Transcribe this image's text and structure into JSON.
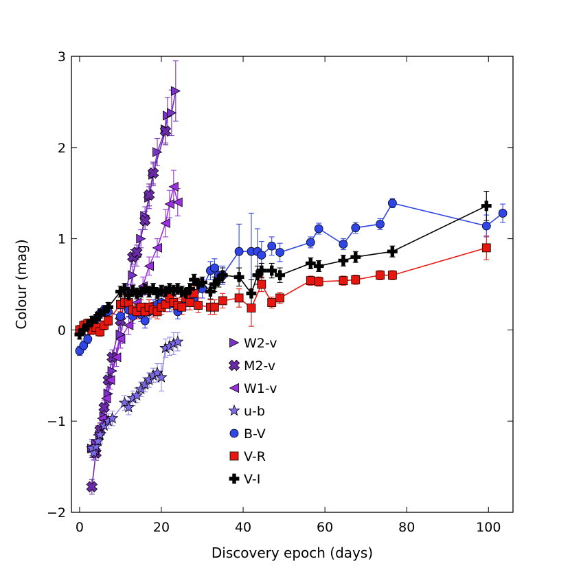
{
  "chart_data": {
    "type": "scatter",
    "title": "",
    "xlabel": "Discovery epoch (days)",
    "ylabel": "Colour (mag)",
    "xlim": [
      -2,
      106
    ],
    "ylim": [
      -2,
      3
    ],
    "xticks": [
      0,
      20,
      40,
      60,
      80,
      100
    ],
    "yticks": [
      -2,
      -1,
      0,
      1,
      2,
      3
    ],
    "xtick_labels": [
      "0",
      "20",
      "40",
      "60",
      "80",
      "100"
    ],
    "ytick_labels": [
      "−2",
      "−1",
      "0",
      "1",
      "2",
      "3"
    ],
    "legend_position": "center",
    "series": [
      {
        "name": "W2-v",
        "marker": "triangle-right",
        "color": "#7a32c8",
        "line": "#7a32c8",
        "x": [
          3.0,
          4.0,
          5.0,
          6.0,
          7.0,
          8.0,
          10.0,
          12.0,
          13.0,
          14.0,
          15.0,
          16.0,
          17.0,
          18.0,
          19.0,
          21.0,
          21.5,
          22.5,
          23.5
        ],
        "y": [
          -1.3,
          -1.25,
          -1.15,
          -0.95,
          -0.7,
          -0.45,
          -0.05,
          0.4,
          0.6,
          0.8,
          1.0,
          1.25,
          1.45,
          1.7,
          1.95,
          2.2,
          2.35,
          2.38,
          2.62
        ],
        "err": [
          0.1,
          0.1,
          0.1,
          0.1,
          0.1,
          0.1,
          0.1,
          0.1,
          0.1,
          0.1,
          0.1,
          0.1,
          0.12,
          0.12,
          0.15,
          0.15,
          0.2,
          0.25,
          0.33
        ]
      },
      {
        "name": "M2-v",
        "marker": "x-cross",
        "color": "#6a2aa8",
        "line": "#6a2aa8",
        "x": [
          3.0,
          4.0,
          5.0,
          6.0,
          7.0,
          8.0,
          10.0,
          13.0,
          14.0,
          16.0,
          17.0,
          18.0,
          21.0
        ],
        "y": [
          -1.72,
          -1.35,
          -1.1,
          -0.85,
          -0.55,
          -0.3,
          0.1,
          0.8,
          0.85,
          1.2,
          1.48,
          1.72,
          2.18
        ],
        "err": [
          0.08,
          0.08,
          0.08,
          0.08,
          0.08,
          0.08,
          0.08,
          0.08,
          0.08,
          0.1,
          0.12,
          0.12,
          0.15
        ]
      },
      {
        "name": "W1-v",
        "marker": "triangle-left",
        "color": "#9b30e0",
        "line": "#9b30e0",
        "x": [
          3.5,
          4.5,
          5.5,
          6.5,
          7.5,
          9.0,
          10.0,
          12.0,
          14.0,
          15.5,
          17.0,
          19.0,
          21.0,
          22.0,
          23.0,
          24.0
        ],
        "y": [
          -1.32,
          -1.15,
          -0.97,
          -0.75,
          -0.55,
          -0.3,
          -0.1,
          0.05,
          0.3,
          0.48,
          0.7,
          0.9,
          1.17,
          1.38,
          1.57,
          1.4
        ],
        "err": [
          0.1,
          0.1,
          0.1,
          0.1,
          0.1,
          0.1,
          0.1,
          0.1,
          0.1,
          0.1,
          0.1,
          0.1,
          0.15,
          0.15,
          0.18,
          0.15
        ]
      },
      {
        "name": "u-b",
        "marker": "star",
        "color": "#7d6ae6",
        "line": "#9a8ae8",
        "x": [
          3.0,
          3.5,
          4.0,
          4.5,
          5.0,
          6.0,
          7.0,
          8.0,
          11.0,
          12.0,
          13.0,
          14.0,
          15.0,
          16.0,
          17.0,
          18.0,
          19.0,
          20.0,
          21.0,
          22.0,
          23.0,
          24.0
        ],
        "y": [
          -1.3,
          -1.35,
          -1.28,
          -1.22,
          -1.15,
          -1.05,
          -1.0,
          -0.97,
          -0.8,
          -0.85,
          -0.75,
          -0.72,
          -0.65,
          -0.6,
          -0.55,
          -0.5,
          -0.47,
          -0.52,
          -0.2,
          -0.18,
          -0.15,
          -0.13
        ],
        "err": [
          0.08,
          0.08,
          0.08,
          0.08,
          0.08,
          0.08,
          0.08,
          0.08,
          0.08,
          0.08,
          0.08,
          0.08,
          0.08,
          0.08,
          0.08,
          0.08,
          0.1,
          0.15,
          0.1,
          0.1,
          0.12,
          0.1
        ]
      },
      {
        "name": "B-V",
        "marker": "circle",
        "color": "#3045e6",
        "line": "#3045e6",
        "x": [
          0.0,
          1.0,
          2.0,
          3.0,
          4.0,
          5.0,
          6.0,
          7.0,
          10.0,
          12.0,
          13.0,
          14.0,
          15.0,
          16.0,
          17.0,
          18.0,
          19.0,
          20.0,
          22.0,
          24.0,
          26.0,
          28.0,
          30.0,
          32.0,
          33.0,
          34.0,
          35.0,
          39.0,
          42.0,
          43.5,
          44.5,
          47.0,
          49.0,
          56.5,
          58.5,
          64.5,
          67.5,
          73.5,
          76.5,
          99.5,
          103.5
        ],
        "y": [
          -0.23,
          -0.17,
          -0.1,
          0.02,
          0.12,
          0.18,
          0.22,
          0.2,
          0.15,
          0.22,
          0.15,
          0.2,
          0.17,
          0.1,
          0.2,
          0.25,
          0.28,
          0.3,
          0.28,
          0.2,
          0.3,
          0.35,
          0.45,
          0.65,
          0.68,
          0.6,
          0.6,
          0.86,
          0.86,
          0.86,
          0.82,
          0.92,
          0.85,
          0.96,
          1.11,
          0.94,
          1.12,
          1.16,
          1.39,
          1.14,
          1.28
        ],
        "err": [
          0.05,
          0.05,
          0.05,
          0.05,
          0.05,
          0.05,
          0.05,
          0.05,
          0.08,
          0.08,
          0.08,
          0.08,
          0.08,
          0.08,
          0.08,
          0.08,
          0.08,
          0.08,
          0.08,
          0.08,
          0.08,
          0.08,
          0.1,
          0.1,
          0.1,
          0.1,
          0.1,
          0.3,
          0.42,
          0.25,
          0.15,
          0.1,
          0.1,
          0.06,
          0.06,
          0.06,
          0.06,
          0.06,
          0.05,
          0.12,
          0.1
        ]
      },
      {
        "name": "V-R",
        "marker": "square",
        "color": "#e8160e",
        "line": "#e8160e",
        "x": [
          0.0,
          1.0,
          2.0,
          3.0,
          4.0,
          5.0,
          6.0,
          7.0,
          10.0,
          11.0,
          12.0,
          13.0,
          14.0,
          15.0,
          16.0,
          17.0,
          18.0,
          19.0,
          20.0,
          21.0,
          22.0,
          23.0,
          24.0,
          25.0,
          26.0,
          27.0,
          28.0,
          29.0,
          32.0,
          33.0,
          35.0,
          39.0,
          42.0,
          44.5,
          47.0,
          49.0,
          56.5,
          58.5,
          64.5,
          67.5,
          73.5,
          76.5,
          99.5
        ],
        "y": [
          0.0,
          0.05,
          0.07,
          0.0,
          0.03,
          -0.02,
          0.05,
          0.1,
          0.28,
          0.3,
          0.3,
          0.22,
          0.2,
          0.25,
          0.2,
          0.25,
          0.22,
          0.2,
          0.25,
          0.28,
          0.35,
          0.3,
          0.27,
          0.25,
          0.35,
          0.3,
          0.4,
          0.27,
          0.25,
          0.25,
          0.32,
          0.35,
          0.24,
          0.5,
          0.3,
          0.35,
          0.54,
          0.53,
          0.54,
          0.55,
          0.6,
          0.6,
          0.9
        ],
        "err": [
          0.05,
          0.05,
          0.05,
          0.05,
          0.05,
          0.05,
          0.05,
          0.05,
          0.08,
          0.08,
          0.08,
          0.08,
          0.08,
          0.08,
          0.08,
          0.08,
          0.08,
          0.08,
          0.08,
          0.08,
          0.08,
          0.08,
          0.08,
          0.08,
          0.08,
          0.08,
          0.08,
          0.08,
          0.08,
          0.08,
          0.08,
          0.1,
          0.2,
          0.08,
          0.06,
          0.06,
          0.05,
          0.05,
          0.05,
          0.05,
          0.05,
          0.05,
          0.13
        ]
      },
      {
        "name": "V-I",
        "marker": "plus",
        "color": "#000000",
        "line": "#000000",
        "x": [
          0.0,
          1.0,
          2.0,
          3.0,
          4.0,
          5.0,
          6.0,
          7.0,
          10.0,
          11.0,
          12.0,
          13.0,
          14.0,
          15.0,
          16.0,
          17.0,
          18.0,
          19.0,
          20.0,
          21.0,
          22.0,
          23.0,
          24.0,
          25.0,
          26.0,
          27.0,
          28.0,
          29.0,
          30.0,
          32.0,
          33.0,
          34.0,
          35.0,
          39.0,
          42.0,
          43.5,
          44.5,
          47.0,
          49.0,
          56.5,
          58.5,
          64.5,
          67.5,
          76.5,
          99.5
        ],
        "y": [
          -0.05,
          0.0,
          0.05,
          0.1,
          0.12,
          0.18,
          0.2,
          0.25,
          0.42,
          0.45,
          0.38,
          0.43,
          0.4,
          0.42,
          0.45,
          0.42,
          0.45,
          0.4,
          0.43,
          0.42,
          0.45,
          0.43,
          0.45,
          0.42,
          0.4,
          0.45,
          0.55,
          0.5,
          0.52,
          0.42,
          0.5,
          0.55,
          0.6,
          0.58,
          0.4,
          0.6,
          0.65,
          0.65,
          0.6,
          0.73,
          0.7,
          0.76,
          0.8,
          0.86,
          1.36
        ],
        "err": [
          0.05,
          0.05,
          0.05,
          0.05,
          0.05,
          0.05,
          0.05,
          0.05,
          0.06,
          0.06,
          0.06,
          0.06,
          0.06,
          0.06,
          0.06,
          0.06,
          0.06,
          0.06,
          0.06,
          0.06,
          0.06,
          0.06,
          0.06,
          0.06,
          0.06,
          0.06,
          0.06,
          0.06,
          0.06,
          0.08,
          0.08,
          0.08,
          0.08,
          0.1,
          0.15,
          0.1,
          0.08,
          0.08,
          0.08,
          0.06,
          0.06,
          0.06,
          0.06,
          0.06,
          0.16
        ]
      }
    ]
  }
}
